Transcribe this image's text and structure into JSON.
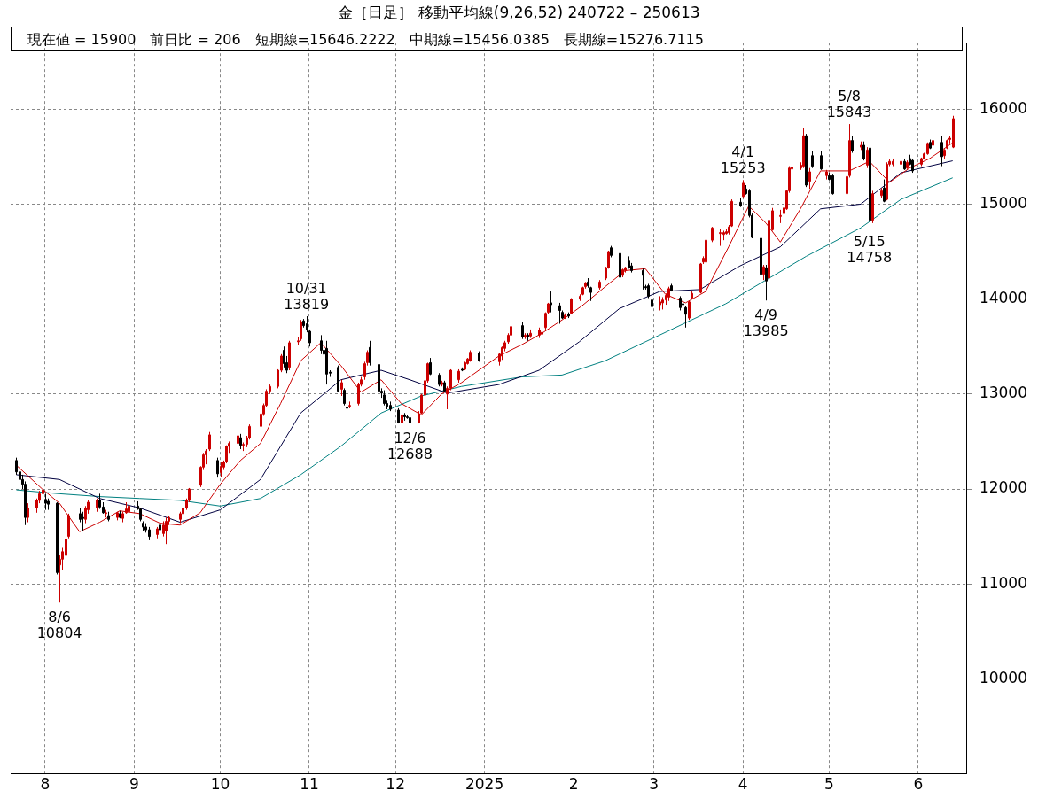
{
  "chart_data": {
    "type": "candlestick",
    "title": "金［日足］ 移動平均線(9,26,52)  240722 – 250613",
    "subtitle": "現在値 = 15900　前日比 = 206　短期線=15646.2222　中期線=15456.0385　長期線=15276.7115",
    "x": [
      "2024-07-22",
      "2024-07-23",
      "2024-07-24",
      "2024-07-25",
      "2024-07-26",
      "2024-07-29",
      "2024-07-30",
      "2024-07-31",
      "2024-08-01",
      "2024-08-02",
      "2024-08-05",
      "2024-08-06",
      "2024-08-07",
      "2024-08-08",
      "2024-08-09",
      "2024-08-13",
      "2024-08-14",
      "2024-08-15",
      "2024-08-16",
      "2024-08-19",
      "2024-08-20",
      "2024-08-21",
      "2024-08-22",
      "2024-08-23",
      "2024-08-26",
      "2024-08-27",
      "2024-08-28",
      "2024-08-29",
      "2024-08-30",
      "2024-09-02",
      "2024-09-03",
      "2024-09-04",
      "2024-09-05",
      "2024-09-06",
      "2024-09-09",
      "2024-09-10",
      "2024-09-11",
      "2024-09-12",
      "2024-09-13",
      "2024-09-17",
      "2024-09-18",
      "2024-09-19",
      "2024-09-20",
      "2024-09-24",
      "2024-09-25",
      "2024-09-26",
      "2024-09-27",
      "2024-09-30",
      "2024-10-01",
      "2024-10-02",
      "2024-10-03",
      "2024-10-04",
      "2024-10-07",
      "2024-10-08",
      "2024-10-09",
      "2024-10-10",
      "2024-10-11",
      "2024-10-15",
      "2024-10-16",
      "2024-10-17",
      "2024-10-18",
      "2024-10-21",
      "2024-10-22",
      "2024-10-23",
      "2024-10-24",
      "2024-10-25",
      "2024-10-28",
      "2024-10-29",
      "2024-10-30",
      "2024-10-31",
      "2024-11-01",
      "2024-11-05",
      "2024-11-06",
      "2024-11-07",
      "2024-11-08",
      "2024-11-11",
      "2024-11-12",
      "2024-11-13",
      "2024-11-14",
      "2024-11-15",
      "2024-11-18",
      "2024-11-19",
      "2024-11-20",
      "2024-11-21",
      "2024-11-22",
      "2024-11-25",
      "2024-11-26",
      "2024-11-27",
      "2024-11-28",
      "2024-11-29",
      "2024-12-02",
      "2024-12-03",
      "2024-12-04",
      "2024-12-05",
      "2024-12-06",
      "2024-12-09",
      "2024-12-10",
      "2024-12-11",
      "2024-12-12",
      "2024-12-13",
      "2024-12-16",
      "2024-12-17",
      "2024-12-18",
      "2024-12-19",
      "2024-12-20",
      "2024-12-23",
      "2024-12-24",
      "2024-12-25",
      "2024-12-26",
      "2024-12-27",
      "2024-12-30",
      "2025-01-06",
      "2025-01-07",
      "2025-01-08",
      "2025-01-09",
      "2025-01-10",
      "2025-01-14",
      "2025-01-15",
      "2025-01-16",
      "2025-01-17",
      "2025-01-20",
      "2025-01-21",
      "2025-01-22",
      "2025-01-23",
      "2025-01-24",
      "2025-01-27",
      "2025-01-28",
      "2025-01-29",
      "2025-01-30",
      "2025-01-31",
      "2025-02-03",
      "2025-02-04",
      "2025-02-05",
      "2025-02-06",
      "2025-02-07",
      "2025-02-10",
      "2025-02-12",
      "2025-02-13",
      "2025-02-14",
      "2025-02-17",
      "2025-02-18",
      "2025-02-19",
      "2025-02-20",
      "2025-02-21",
      "2025-02-25",
      "2025-02-26",
      "2025-02-27",
      "2025-02-28",
      "2025-03-03",
      "2025-03-04",
      "2025-03-05",
      "2025-03-06",
      "2025-03-07",
      "2025-03-10",
      "2025-03-11",
      "2025-03-12",
      "2025-03-13",
      "2025-03-14",
      "2025-03-17",
      "2025-03-18",
      "2025-03-19",
      "2025-03-21",
      "2025-03-24",
      "2025-03-25",
      "2025-03-26",
      "2025-03-27",
      "2025-03-28",
      "2025-03-31",
      "2025-04-01",
      "2025-04-02",
      "2025-04-03",
      "2025-04-04",
      "2025-04-07",
      "2025-04-08",
      "2025-04-09",
      "2025-04-10",
      "2025-04-11",
      "2025-04-14",
      "2025-04-15",
      "2025-04-16",
      "2025-04-17",
      "2025-04-18",
      "2025-04-21",
      "2025-04-22",
      "2025-04-23",
      "2025-04-24",
      "2025-04-25",
      "2025-04-28",
      "2025-04-30",
      "2025-05-01",
      "2025-05-02",
      "2025-05-07",
      "2025-05-08",
      "2025-05-09",
      "2025-05-12",
      "2025-05-13",
      "2025-05-14",
      "2025-05-15",
      "2025-05-16",
      "2025-05-19",
      "2025-05-20",
      "2025-05-21",
      "2025-05-22",
      "2025-05-23",
      "2025-05-26",
      "2025-05-27",
      "2025-05-28",
      "2025-05-29",
      "2025-05-30",
      "2025-06-02",
      "2025-06-03",
      "2025-06-04",
      "2025-06-05",
      "2025-06-06",
      "2025-06-09",
      "2025-06-10",
      "2025-06-11",
      "2025-06-12",
      "2025-06-13"
    ],
    "colors": [
      "#000000",
      "#000000",
      "#000000",
      "#000000",
      "#cc0000",
      "#cc0000",
      "#cc0000",
      "#cc0000",
      "#000000",
      "#000000",
      "#000000",
      "#cc0000",
      "#cc0000",
      "#cc0000",
      "#cc0000",
      "#000000",
      "#000000",
      "#cc0000",
      "#cc0000",
      "#cc0000",
      "#000000",
      "#000000",
      "#cc0000",
      "#000000",
      "#cc0000",
      "#000000",
      "#cc0000",
      "#cc0000",
      "#cc0000",
      "#000000",
      "#000000",
      "#000000",
      "#000000",
      "#000000",
      "#cc0000",
      "#000000",
      "#cc0000",
      "#cc0000",
      "#cc0000",
      "#cc0000",
      "#cc0000",
      "#cc0000",
      "#cc0000",
      "#cc0000",
      "#cc0000",
      "#cc0000",
      "#cc0000",
      "#000000",
      "#cc0000",
      "#cc0000",
      "#cc0000",
      "#cc0000",
      "#cc0000",
      "#000000",
      "#cc0000",
      "#cc0000",
      "#cc0000",
      "#cc0000",
      "#cc0000",
      "#cc0000",
      "#cc0000",
      "#cc0000",
      "#cc0000",
      "#000000",
      "#000000",
      "#cc0000",
      "#cc0000",
      "#cc0000",
      "#000000",
      "#000000",
      "#000000",
      "#000000",
      "#000000",
      "#000000",
      "#000000",
      "#000000",
      "#cc0000",
      "#000000",
      "#000000",
      "#cc0000",
      "#cc0000",
      "#cc0000",
      "#cc0000",
      "#cc0000",
      "#000000",
      "#000000",
      "#000000",
      "#000000",
      "#000000",
      "#000000",
      "#000000",
      "#cc0000",
      "#000000",
      "#000000",
      "#000000",
      "#cc0000",
      "#cc0000",
      "#cc0000",
      "#cc0000",
      "#000000",
      "#000000",
      "#cc0000",
      "#000000",
      "#cc0000",
      "#cc0000",
      "#cc0000",
      "#000000",
      "#cc0000",
      "#cc0000",
      "#cc0000",
      "#000000",
      "#cc0000",
      "#cc0000",
      "#cc0000",
      "#cc0000",
      "#cc0000",
      "#000000",
      "#cc0000",
      "#000000",
      "#cc0000",
      "#cc0000",
      "#cc0000",
      "#cc0000",
      "#cc0000",
      "#000000",
      "#000000",
      "#000000",
      "#cc0000",
      "#000000",
      "#cc0000",
      "#cc0000",
      "#cc0000",
      "#cc0000",
      "#000000",
      "#000000",
      "#cc0000",
      "#cc0000",
      "#cc0000",
      "#000000",
      "#000000",
      "#cc0000",
      "#cc0000",
      "#000000",
      "#000000",
      "#000000",
      "#000000",
      "#000000",
      "#000000",
      "#cc0000",
      "#cc0000",
      "#cc0000",
      "#cc0000",
      "#000000",
      "#000000",
      "#000000",
      "#000000",
      "#cc0000",
      "#cc0000",
      "#cc0000",
      "#cc0000",
      "#cc0000",
      "#cc0000",
      "#cc0000",
      "#cc0000",
      "#cc0000",
      "#cc0000",
      "#cc0000",
      "#000000",
      "#cc0000",
      "#000000",
      "#000000",
      "#000000",
      "#000000",
      "#cc0000",
      "#000000",
      "#cc0000",
      "#cc0000",
      "#cc0000",
      "#cc0000",
      "#cc0000",
      "#cc0000",
      "#cc0000",
      "#cc0000",
      "#cc0000",
      "#000000",
      "#cc0000",
      "#000000",
      "#000000",
      "#cc0000",
      "#000000",
      "#000000",
      "#cc0000",
      "#cc0000",
      "#000000",
      "#cc0000",
      "#000000",
      "#cc0000",
      "#000000",
      "#cc0000",
      "#cc0000",
      "#000000",
      "#cc0000",
      "#cc0000",
      "#cc0000",
      "#cc0000",
      "#000000",
      "#cc0000",
      "#000000",
      "#000000",
      "#cc0000",
      "#cc0000",
      "#cc0000",
      "#000000",
      "#cc0000",
      "#000000",
      "#cc0000",
      "#cc0000",
      "#cc0000",
      "#cc0000"
    ],
    "ohlc": [
      [
        12300,
        12330,
        12150,
        12180
      ],
      [
        12180,
        12220,
        12050,
        12100
      ],
      [
        12100,
        12150,
        12000,
        12050
      ],
      [
        12050,
        12080,
        11620,
        11700
      ],
      [
        11700,
        11850,
        11650,
        11800
      ],
      [
        11800,
        11900,
        11750,
        11880
      ],
      [
        11880,
        11980,
        11850,
        11950
      ],
      [
        11950,
        12000,
        11870,
        11990
      ],
      [
        11890,
        11950,
        11780,
        11850
      ],
      [
        11870,
        11900,
        11780,
        11840
      ],
      [
        11850,
        11860,
        11100,
        11120
      ],
      [
        11200,
        11300,
        10804,
        11260
      ],
      [
        11260,
        11380,
        11150,
        11340
      ],
      [
        11300,
        11480,
        11250,
        11470
      ],
      [
        11500,
        11740,
        11480,
        11720
      ],
      [
        11740,
        11800,
        11650,
        11680
      ],
      [
        11700,
        11760,
        11560,
        11690
      ],
      [
        11680,
        11820,
        11640,
        11800
      ],
      [
        11780,
        11880,
        11740,
        11860
      ],
      [
        11800,
        11900,
        11760,
        11880
      ],
      [
        11880,
        11950,
        11790,
        11810
      ],
      [
        11810,
        11860,
        11740,
        11750
      ],
      [
        11740,
        11780,
        11700,
        11750
      ],
      [
        11720,
        11760,
        11660,
        11680
      ],
      [
        11700,
        11760,
        11670,
        11750
      ],
      [
        11740,
        11770,
        11690,
        11700
      ],
      [
        11690,
        11760,
        11650,
        11740
      ],
      [
        11750,
        11860,
        11740,
        11790
      ],
      [
        11760,
        11860,
        11740,
        11820
      ],
      [
        11820,
        11870,
        11780,
        11790
      ],
      [
        11790,
        11800,
        11660,
        11680
      ],
      [
        11640,
        11660,
        11560,
        11600
      ],
      [
        11600,
        11640,
        11540,
        11570
      ],
      [
        11570,
        11600,
        11460,
        11500
      ],
      [
        11520,
        11600,
        11480,
        11580
      ],
      [
        11620,
        11660,
        11540,
        11570
      ],
      [
        11530,
        11660,
        11500,
        11620
      ],
      [
        11560,
        11700,
        11420,
        11660
      ],
      [
        11660,
        11720,
        11620,
        11700
      ],
      [
        11680,
        11760,
        11640,
        11740
      ],
      [
        11740,
        11820,
        11700,
        11800
      ],
      [
        11800,
        11900,
        11780,
        11880
      ],
      [
        11880,
        12010,
        11860,
        12000
      ],
      [
        12040,
        12240,
        12020,
        12230
      ],
      [
        12230,
        12380,
        12200,
        12360
      ],
      [
        12360,
        12420,
        12260,
        12400
      ],
      [
        12420,
        12600,
        12400,
        12570
      ],
      [
        12300,
        12330,
        12120,
        12160
      ],
      [
        12170,
        12280,
        12130,
        12240
      ],
      [
        12230,
        12300,
        12200,
        12280
      ],
      [
        12290,
        12460,
        12270,
        12450
      ],
      [
        12450,
        12500,
        12380,
        12480
      ],
      [
        12480,
        12620,
        12450,
        12560
      ],
      [
        12540,
        12580,
        12420,
        12460
      ],
      [
        12460,
        12490,
        12400,
        12470
      ],
      [
        12470,
        12560,
        12440,
        12540
      ],
      [
        12540,
        12680,
        12520,
        12660
      ],
      [
        12660,
        12800,
        12640,
        12790
      ],
      [
        12790,
        12900,
        12770,
        12880
      ],
      [
        12880,
        13050,
        12860,
        13030
      ],
      [
        13030,
        13100,
        13000,
        13080
      ],
      [
        13080,
        13260,
        13060,
        13250
      ],
      [
        13250,
        13420,
        13230,
        13400
      ],
      [
        13460,
        13500,
        13280,
        13320
      ],
      [
        13330,
        13400,
        13220,
        13250
      ],
      [
        13280,
        13560,
        13250,
        13540
      ],
      [
        13550,
        13600,
        13520,
        13560
      ],
      [
        13580,
        13780,
        13560,
        13760
      ],
      [
        13770,
        13790,
        13700,
        13720
      ],
      [
        13740,
        13819,
        13650,
        13680
      ],
      [
        13660,
        13680,
        13500,
        13540
      ],
      [
        13560,
        13620,
        13420,
        13460
      ],
      [
        13460,
        13580,
        13360,
        13420
      ],
      [
        13480,
        13560,
        13100,
        13210
      ],
      [
        13230,
        13250,
        13180,
        13220
      ],
      [
        13280,
        13300,
        13020,
        13030
      ],
      [
        13050,
        13150,
        12980,
        13120
      ],
      [
        13040,
        13060,
        12880,
        12900
      ],
      [
        12860,
        12900,
        12780,
        12850
      ],
      [
        12880,
        12920,
        12850,
        12880
      ],
      [
        12900,
        13120,
        12880,
        13100
      ],
      [
        13100,
        13180,
        13080,
        13150
      ],
      [
        13180,
        13340,
        13150,
        13320
      ],
      [
        13330,
        13460,
        13300,
        13440
      ],
      [
        13490,
        13560,
        13300,
        13330
      ],
      [
        13310,
        13320,
        13000,
        13030
      ],
      [
        13030,
        13060,
        12960,
        13010
      ],
      [
        12990,
        13040,
        12880,
        12900
      ],
      [
        12900,
        12930,
        12840,
        12870
      ],
      [
        12880,
        12920,
        12820,
        12840
      ],
      [
        12830,
        12850,
        12690,
        12700
      ],
      [
        12700,
        12800,
        12680,
        12780
      ],
      [
        12780,
        12800,
        12720,
        12760
      ],
      [
        12760,
        12780,
        12740,
        12750
      ],
      [
        12750,
        12780,
        12688,
        12700
      ],
      [
        12700,
        12820,
        12690,
        12790
      ],
      [
        12800,
        13000,
        12790,
        12990
      ],
      [
        12990,
        13150,
        12970,
        13140
      ],
      [
        13140,
        13330,
        13120,
        13320
      ],
      [
        13330,
        13380,
        13200,
        13210
      ],
      [
        13200,
        13220,
        13080,
        13100
      ],
      [
        13100,
        13140,
        13080,
        13120
      ],
      [
        13120,
        13140,
        13020,
        13030
      ],
      [
        13000,
        13080,
        12840,
        13060
      ],
      [
        13060,
        13260,
        13040,
        13250
      ],
      [
        13150,
        13260,
        13120,
        13240
      ],
      [
        13260,
        13280,
        13240,
        13250
      ],
      [
        13260,
        13340,
        13250,
        13330
      ],
      [
        13320,
        13380,
        13310,
        13370
      ],
      [
        13350,
        13460,
        13340,
        13440
      ],
      [
        13430,
        13450,
        13340,
        13350
      ],
      [
        13340,
        13430,
        13300,
        13420
      ],
      [
        13400,
        13500,
        13360,
        13490
      ],
      [
        13480,
        13560,
        13450,
        13540
      ],
      [
        13550,
        13640,
        13530,
        13620
      ],
      [
        13620,
        13720,
        13600,
        13710
      ],
      [
        13720,
        13760,
        13580,
        13600
      ],
      [
        13600,
        13640,
        13580,
        13620
      ],
      [
        13620,
        13640,
        13560,
        13600
      ],
      [
        13610,
        13680,
        13590,
        13640
      ],
      [
        13620,
        13700,
        13590,
        13670
      ],
      [
        13630,
        13680,
        13600,
        13650
      ],
      [
        13700,
        13860,
        13680,
        13850
      ],
      [
        13860,
        13960,
        13840,
        13950
      ],
      [
        13960,
        14080,
        13860,
        13940
      ],
      [
        13930,
        13960,
        13740,
        13880
      ],
      [
        13860,
        13880,
        13790,
        13800
      ],
      [
        13800,
        13850,
        13790,
        13830
      ],
      [
        13840,
        13860,
        13800,
        13820
      ],
      [
        13850,
        14010,
        13840,
        14000
      ],
      [
        14000,
        14050,
        13980,
        14030
      ],
      [
        14050,
        14130,
        14040,
        14120
      ],
      [
        14130,
        14180,
        14110,
        14170
      ],
      [
        14180,
        14220,
        14120,
        14140
      ],
      [
        14120,
        14130,
        13980,
        14070
      ],
      [
        14120,
        14200,
        14100,
        14180
      ],
      [
        14220,
        14340,
        14200,
        14330
      ],
      [
        14330,
        14510,
        14320,
        14500
      ],
      [
        14540,
        14560,
        14440,
        14460
      ],
      [
        14480,
        14500,
        14200,
        14230
      ],
      [
        14250,
        14320,
        14230,
        14310
      ],
      [
        14300,
        14340,
        14280,
        14330
      ],
      [
        14400,
        14450,
        14320,
        14330
      ],
      [
        14350,
        14380,
        14280,
        14300
      ],
      [
        14300,
        14320,
        14100,
        14250
      ],
      [
        14130,
        14150,
        14100,
        14120
      ],
      [
        14140,
        14160,
        14010,
        14030
      ],
      [
        13990,
        14010,
        13900,
        13920
      ],
      [
        13940,
        14030,
        13880,
        13970
      ],
      [
        13960,
        14020,
        13890,
        13990
      ],
      [
        13990,
        14060,
        13940,
        14040
      ],
      [
        14020,
        14130,
        13980,
        14110
      ],
      [
        14140,
        14160,
        14080,
        14090
      ],
      [
        14010,
        14030,
        13880,
        13910
      ],
      [
        13950,
        13970,
        13910,
        13940
      ],
      [
        13910,
        13930,
        13700,
        13840
      ],
      [
        13800,
        13980,
        13780,
        13970
      ],
      [
        14010,
        14080,
        14000,
        14060
      ],
      [
        14070,
        14380,
        14060,
        14370
      ],
      [
        14390,
        14450,
        14370,
        14430
      ],
      [
        14390,
        14640,
        14380,
        14620
      ],
      [
        14620,
        14760,
        14600,
        14750
      ],
      [
        14690,
        14740,
        14560,
        14700
      ],
      [
        14680,
        14720,
        14620,
        14700
      ],
      [
        14690,
        14740,
        14680,
        14710
      ],
      [
        14700,
        14780,
        14680,
        14760
      ],
      [
        14770,
        15050,
        14760,
        15030
      ],
      [
        14980,
        15060,
        14970,
        15020
      ],
      [
        15080,
        15253,
        15060,
        15220
      ],
      [
        15160,
        15200,
        15100,
        15110
      ],
      [
        15140,
        15160,
        14860,
        14880
      ],
      [
        14880,
        14900,
        14640,
        14650
      ],
      [
        14640,
        14660,
        14020,
        14260
      ],
      [
        14260,
        14360,
        14200,
        14340
      ],
      [
        14330,
        14360,
        13985,
        14190
      ],
      [
        14220,
        14840,
        14200,
        14830
      ],
      [
        14730,
        14960,
        14720,
        14930
      ],
      [
        14870,
        14940,
        14800,
        14880
      ],
      [
        14900,
        14990,
        14880,
        14960
      ],
      [
        14950,
        15150,
        14940,
        15140
      ],
      [
        15140,
        15400,
        15120,
        15380
      ],
      [
        15370,
        15420,
        15340,
        15390
      ],
      [
        15380,
        15440,
        15360,
        15410
      ],
      [
        15400,
        15800,
        15380,
        15720
      ],
      [
        15720,
        15740,
        15180,
        15200
      ],
      [
        15240,
        15380,
        15160,
        15340
      ],
      [
        15510,
        15560,
        15380,
        15400
      ],
      [
        15510,
        15560,
        15360,
        15370
      ],
      [
        15300,
        15360,
        15260,
        15340
      ],
      [
        15300,
        15330,
        15250,
        15260
      ],
      [
        15300,
        15320,
        15100,
        15110
      ],
      [
        15110,
        15300,
        15080,
        15290
      ],
      [
        15300,
        15843,
        15280,
        15670
      ],
      [
        15670,
        15720,
        15540,
        15560
      ],
      [
        15600,
        15660,
        15570,
        15620
      ],
      [
        15620,
        15660,
        15460,
        15480
      ],
      [
        15410,
        15600,
        15380,
        15570
      ],
      [
        15590,
        15620,
        14758,
        14830
      ],
      [
        14830,
        15140,
        14800,
        15110
      ],
      [
        15090,
        15170,
        15060,
        15140
      ],
      [
        15170,
        15260,
        15020,
        15030
      ],
      [
        15050,
        15440,
        15040,
        15420
      ],
      [
        15420,
        15470,
        15400,
        15450
      ],
      [
        15420,
        15480,
        15400,
        15450
      ],
      [
        15420,
        15470,
        15400,
        15450
      ],
      [
        15450,
        15480,
        15360,
        15370
      ],
      [
        15380,
        15460,
        15370,
        15440
      ],
      [
        15480,
        15520,
        15410,
        15420
      ],
      [
        15460,
        15480,
        15330,
        15350
      ],
      [
        15420,
        15490,
        15400,
        15480
      ],
      [
        15480,
        15540,
        15470,
        15530
      ],
      [
        15530,
        15650,
        15520,
        15640
      ],
      [
        15650,
        15680,
        15580,
        15590
      ],
      [
        15620,
        15700,
        15600,
        15670
      ],
      [
        15650,
        15720,
        15400,
        15500
      ],
      [
        15510,
        15580,
        15480,
        15570
      ],
      [
        15590,
        15680,
        15580,
        15670
      ],
      [
        15680,
        15720,
        15640,
        15694
      ],
      [
        15600,
        15930,
        15590,
        15900
      ]
    ],
    "series": [
      {
        "type": "line",
        "color": "#cc0000",
        "x": [
          "2024-07-22",
          "2024-07-31",
          "2024-08-06",
          "2024-08-13",
          "2024-08-20",
          "2024-08-27",
          "2024-09-03",
          "2024-09-10",
          "2024-09-17",
          "2024-09-24",
          "2024-10-01",
          "2024-10-08",
          "2024-10-15",
          "2024-10-22",
          "2024-10-29",
          "2024-11-05",
          "2024-11-12",
          "2024-11-19",
          "2024-11-26",
          "2024-12-03",
          "2024-12-10",
          "2024-12-17",
          "2024-12-24",
          "2025-01-06",
          "2025-01-14",
          "2025-01-21",
          "2025-01-28",
          "2025-02-04",
          "2025-02-12",
          "2025-02-19",
          "2025-02-26",
          "2025-03-05",
          "2025-03-12",
          "2025-03-19",
          "2025-03-27",
          "2025-04-03",
          "2025-04-09",
          "2025-04-14",
          "2025-04-21",
          "2025-04-28",
          "2025-05-08",
          "2025-05-15",
          "2025-05-22",
          "2025-05-29",
          "2025-06-05",
          "2025-06-13"
        ],
        "values": [
          12250,
          12000,
          11850,
          11550,
          11650,
          11770,
          11740,
          11640,
          11620,
          11750,
          12050,
          12300,
          12480,
          12900,
          13350,
          13540,
          13300,
          13020,
          13150,
          12900,
          12780,
          13000,
          13120,
          13400,
          13520,
          13640,
          13780,
          13930,
          14130,
          14300,
          14320,
          14050,
          13960,
          14080,
          14550,
          14980,
          14800,
          14600,
          14950,
          15350,
          15350,
          15450,
          15230,
          15380,
          15480,
          15646
        ]
      },
      {
        "type": "line",
        "color": "#000040",
        "x": [
          "2024-07-22",
          "2024-08-06",
          "2024-08-20",
          "2024-09-03",
          "2024-09-17",
          "2024-10-01",
          "2024-10-15",
          "2024-10-29",
          "2024-11-12",
          "2024-11-26",
          "2024-12-06",
          "2024-12-19",
          "2025-01-06",
          "2025-01-20",
          "2025-02-03",
          "2025-02-17",
          "2025-03-03",
          "2025-03-17",
          "2025-03-31",
          "2025-04-14",
          "2025-04-28",
          "2025-05-12",
          "2025-05-26",
          "2025-06-13"
        ],
        "values": [
          12150,
          12100,
          11900,
          11800,
          11650,
          11780,
          12100,
          12800,
          13150,
          13250,
          13150,
          13010,
          13100,
          13250,
          13550,
          13900,
          14080,
          14100,
          14350,
          14550,
          14950,
          15000,
          15330,
          15456
        ]
      },
      {
        "type": "line",
        "color": "#008080",
        "x": [
          "2024-07-22",
          "2024-08-06",
          "2024-08-20",
          "2024-09-03",
          "2024-09-17",
          "2024-10-01",
          "2024-10-15",
          "2024-10-29",
          "2024-11-12",
          "2024-11-26",
          "2024-12-10",
          "2024-12-24",
          "2025-01-14",
          "2025-01-28",
          "2025-02-12",
          "2025-02-26",
          "2025-03-12",
          "2025-03-26",
          "2025-04-09",
          "2025-04-23",
          "2025-05-12",
          "2025-05-26",
          "2025-06-13"
        ],
        "values": [
          11990,
          11950,
          11920,
          11900,
          11880,
          11820,
          11900,
          12150,
          12450,
          12800,
          12980,
          13080,
          13180,
          13200,
          13350,
          13550,
          13750,
          13950,
          14200,
          14450,
          14750,
          15050,
          15277
        ]
      }
    ],
    "marker": "none",
    "xlim": [
      "2024-07-20",
      "2025-06-18"
    ],
    "xticks": [
      {
        "value": "2024-08-01",
        "label": "8"
      },
      {
        "value": "2024-09-01",
        "label": "9"
      },
      {
        "value": "2024-10-01",
        "label": "10"
      },
      {
        "value": "2024-11-01",
        "label": "11"
      },
      {
        "value": "2024-12-01",
        "label": "12"
      },
      {
        "value": "2025-01-01",
        "label": "2025"
      },
      {
        "value": "2025-02-01",
        "label": "2"
      },
      {
        "value": "2025-03-01",
        "label": "3"
      },
      {
        "value": "2025-04-01",
        "label": "4"
      },
      {
        "value": "2025-05-01",
        "label": "5"
      },
      {
        "value": "2025-06-01",
        "label": "6"
      }
    ],
    "ylim": [
      9000,
      16700
    ],
    "yticks": [
      10000,
      11000,
      12000,
      13000,
      14000,
      15000,
      16000
    ],
    "grid": true,
    "annotations": [
      {
        "text": "8/6\n10804",
        "x": "2024-08-06",
        "y": 10804
      },
      {
        "text": "10/31\n13819",
        "x": "2024-10-31",
        "y": 13819
      },
      {
        "text": "12/6\n12688",
        "x": "2024-12-06",
        "y": 12688
      },
      {
        "text": "4/1\n15253",
        "x": "2025-04-01",
        "y": 15253
      },
      {
        "text": "4/9\n13985",
        "x": "2025-04-09",
        "y": 13985
      },
      {
        "text": "5/8\n15843",
        "x": "2025-05-08",
        "y": 15843
      },
      {
        "text": "5/15\n14758",
        "x": "2025-05-15",
        "y": 14758
      }
    ]
  }
}
